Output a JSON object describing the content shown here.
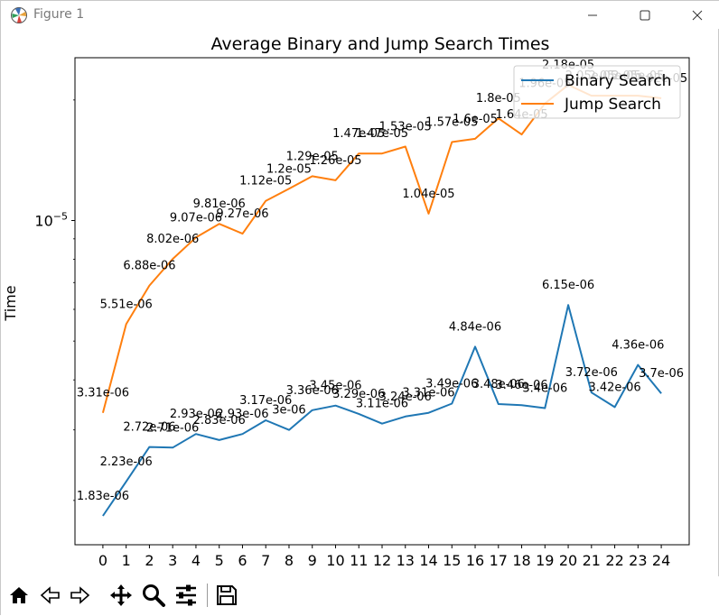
{
  "window": {
    "title": "Figure 1"
  },
  "toolbar": {
    "tools": [
      "home-icon",
      "back-arrow-icon",
      "forward-arrow-icon",
      "pan-icon",
      "zoom-icon",
      "configure-subplots-icon",
      "save-icon"
    ]
  },
  "chart_data": {
    "type": "line",
    "title": "Average Binary and Jump Search Times",
    "xlabel": "",
    "ylabel": "Time",
    "yscale": "log",
    "ylim": [
      1.55e-06,
      2.55e-05
    ],
    "xlim": [
      -1.2,
      25.2
    ],
    "x": [
      0,
      1,
      2,
      3,
      4,
      5,
      6,
      7,
      8,
      9,
      10,
      11,
      12,
      13,
      14,
      15,
      16,
      17,
      18,
      19,
      20,
      21,
      22,
      23,
      24
    ],
    "xtick_labels": [
      "0",
      "1",
      "2",
      "3",
      "4",
      "5",
      "6",
      "7",
      "8",
      "9",
      "10",
      "11",
      "12",
      "13",
      "14",
      "15",
      "16",
      "17",
      "18",
      "19",
      "20",
      "21",
      "22",
      "23",
      "24"
    ],
    "ytick_labels": [
      {
        "value": 1e-05,
        "base": "10",
        "exp": "−5"
      }
    ],
    "legend_position": "upper-right",
    "grid": false,
    "series": [
      {
        "name": "Binary Search",
        "color": "#1f77b4",
        "values": [
          1.83e-06,
          2.23e-06,
          2.72e-06,
          2.71e-06,
          2.93e-06,
          2.83e-06,
          2.93e-06,
          3.17e-06,
          3e-06,
          3.36e-06,
          3.45e-06,
          3.29e-06,
          3.11e-06,
          3.24e-06,
          3.31e-06,
          3.49e-06,
          4.84e-06,
          3.48e-06,
          3.46e-06,
          3.4e-06,
          6.15e-06,
          3.72e-06,
          3.42e-06,
          4.36e-06,
          3.7e-06
        ],
        "labels": [
          "1.83e-06",
          "2.23e-06",
          "2.72e-06",
          "2.71e-06",
          "2.93e-06",
          "2.83e-06",
          "2.93e-06",
          "3.17e-06",
          "3e-06",
          "3.36e-06",
          "3.45e-06",
          "3.29e-06",
          "3.11e-06",
          "3.24e-06",
          "3.31e-06",
          "3.49e-06",
          "4.84e-06",
          "3.48e-06",
          "3.46e-06",
          "3.4e-06",
          "6.15e-06",
          "3.72e-06",
          "3.42e-06",
          "4.36e-06",
          "3.7e-06"
        ]
      },
      {
        "name": "Jump Search",
        "color": "#ff7f0e",
        "values": [
          3.31e-06,
          5.51e-06,
          6.88e-06,
          8.02e-06,
          9.07e-06,
          9.81e-06,
          9.27e-06,
          1.12e-05,
          1.2e-05,
          1.29e-05,
          1.26e-05,
          1.47e-05,
          1.47e-05,
          1.53e-05,
          1.04e-05,
          1.57e-05,
          1.6e-05,
          1.8e-05,
          1.64e-05,
          1.96e-05,
          2.18e-05,
          2.05e-05,
          2.05e-05,
          2.05e-05,
          2.02e-05
        ],
        "labels": [
          "3.31e-06",
          "5.51e-06",
          "6.88e-06",
          "8.02e-06",
          "9.07e-06",
          "9.81e-06",
          "9.27e-06",
          "1.12e-05",
          "1.2e-05",
          "1.29e-05",
          "1.26e-05",
          "1.47e-05",
          "1.47e-05",
          "1.53e-05",
          "1.04e-05",
          "1.57e-05",
          "1.6e-05",
          "1.8e-05",
          "1.64e-05",
          "1.96e-05",
          "2.18e-05",
          "2.05e-05",
          "2.05e-05",
          "2.05e-05",
          "2.02e-05"
        ]
      }
    ]
  }
}
